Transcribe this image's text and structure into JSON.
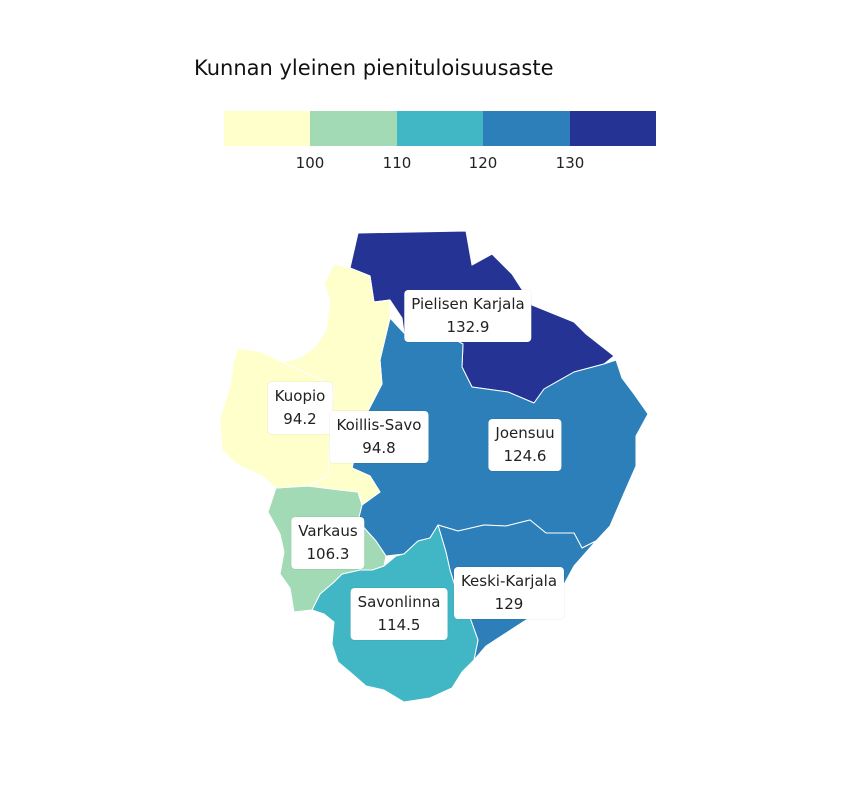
{
  "title": "Kunnan yleinen pienituloisuusaste",
  "legend": {
    "colors": [
      "#ffffcc",
      "#a1dab4",
      "#41b6c4",
      "#2c7fb8",
      "#253494"
    ],
    "ticks": [
      "100",
      "110",
      "120",
      "130"
    ]
  },
  "regions": [
    {
      "id": "pielisen-karjala",
      "name": "Pielisen Karjala",
      "value": "132.9",
      "color": "#253494"
    },
    {
      "id": "joensuu",
      "name": "Joensuu",
      "value": "124.6",
      "color": "#2c7fb8"
    },
    {
      "id": "keski-karjala",
      "name": "Keski-Karjala",
      "value": "129",
      "color": "#2c7fb8"
    },
    {
      "id": "savonlinna",
      "name": "Savonlinna",
      "value": "114.5",
      "color": "#41b6c4"
    },
    {
      "id": "varkaus",
      "name": "Varkaus",
      "value": "106.3",
      "color": "#a1dab4"
    },
    {
      "id": "kuopio",
      "name": "Kuopio",
      "value": "94.2",
      "color": "#ffffcc"
    },
    {
      "id": "koillis-savo",
      "name": "Koillis-Savo",
      "value": "94.8",
      "color": "#ffffcc"
    }
  ]
}
